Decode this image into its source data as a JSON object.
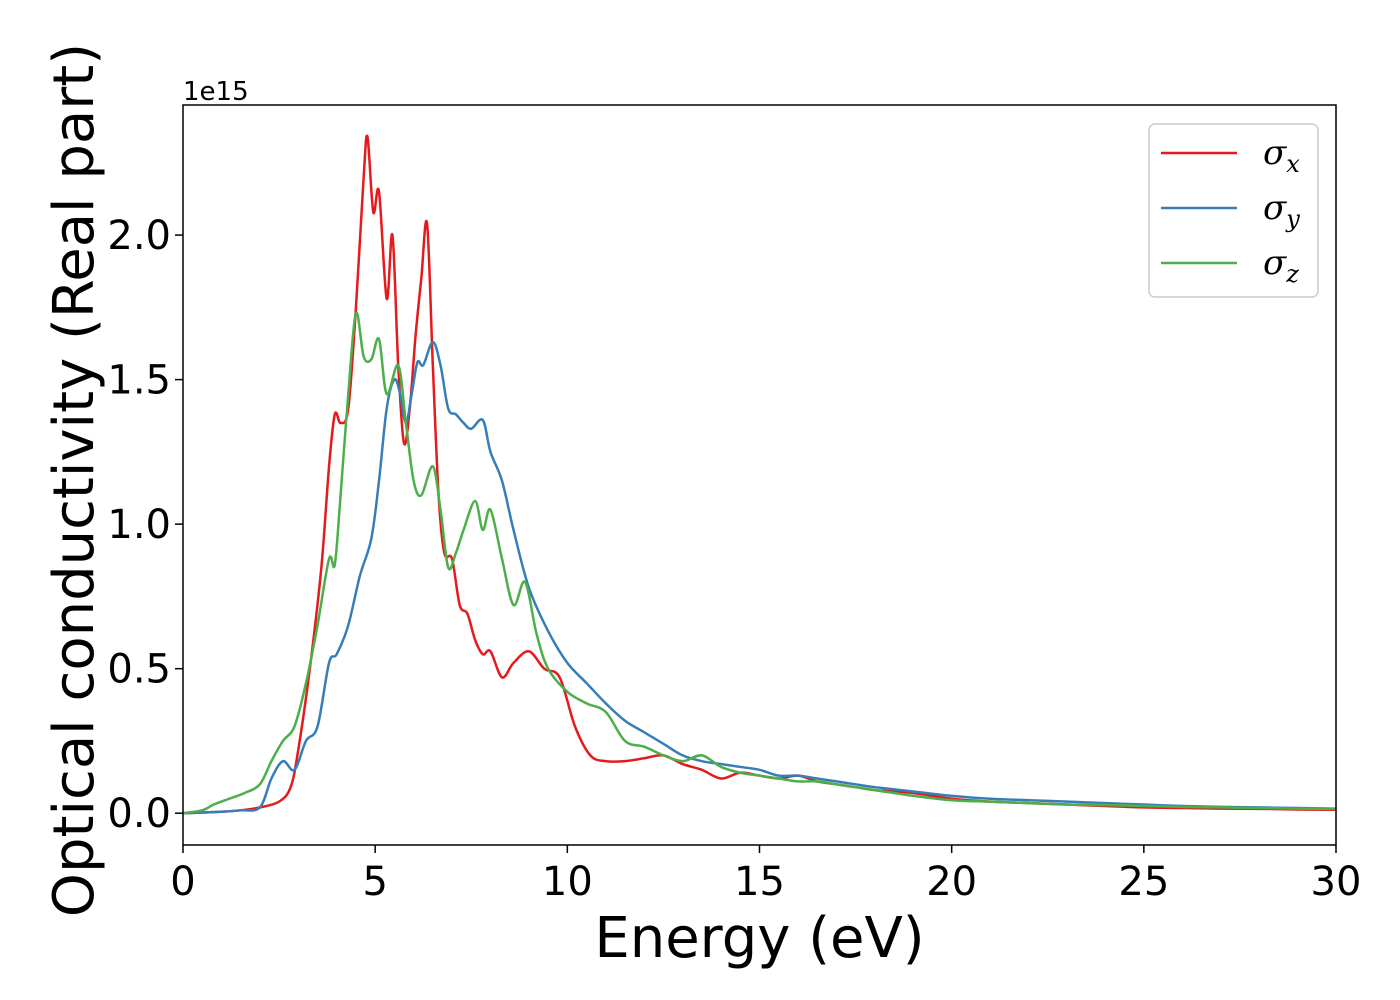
{
  "chart_data": {
    "type": "line",
    "title": "",
    "xlabel": "Energy (eV)",
    "ylabel": "Optical conductivity (Real part)",
    "y_multiplier_label": "1e15",
    "xlim": [
      0,
      30
    ],
    "ylim": [
      -0.11,
      2.45
    ],
    "x_ticks": [
      0,
      5,
      10,
      15,
      20,
      25,
      30
    ],
    "x_tick_labels": [
      "0",
      "5",
      "10",
      "15",
      "20",
      "25",
      "30"
    ],
    "y_ticks": [
      0.0,
      0.5,
      1.0,
      1.5,
      2.0
    ],
    "y_tick_labels": [
      "0.0",
      "0.5",
      "1.0",
      "1.5",
      "2.0"
    ],
    "grid": false,
    "legend_position": "top-right",
    "series": [
      {
        "name_symbol": "σ",
        "name_subscript": "x",
        "color": "#e41a1c",
        "x": [
          0,
          1,
          1.5,
          2,
          2.5,
          2.8,
          3.0,
          3.3,
          3.6,
          3.8,
          3.95,
          4.1,
          4.3,
          4.5,
          4.7,
          4.8,
          4.95,
          5.1,
          5.3,
          5.45,
          5.6,
          5.75,
          5.9,
          6.05,
          6.2,
          6.35,
          6.5,
          6.65,
          6.8,
          7.0,
          7.2,
          7.4,
          7.6,
          7.8,
          8.0,
          8.3,
          8.6,
          9.0,
          9.4,
          9.8,
          10.2,
          10.6,
          11.0,
          11.5,
          12.0,
          12.5,
          13.0,
          13.5,
          14.0,
          14.5,
          15.0,
          15.5,
          16.0,
          16.5,
          17.0,
          17.5,
          18.0,
          19.0,
          20.0,
          21.0,
          22.0,
          23.0,
          24.0,
          25.0,
          26.0,
          27.0,
          28.0,
          29.0,
          30.0
        ],
        "y": [
          0.0,
          0.005,
          0.01,
          0.02,
          0.04,
          0.09,
          0.22,
          0.5,
          0.85,
          1.2,
          1.38,
          1.35,
          1.4,
          1.75,
          2.2,
          2.34,
          2.08,
          2.15,
          1.78,
          2.0,
          1.55,
          1.28,
          1.4,
          1.65,
          1.85,
          2.04,
          1.55,
          1.1,
          0.9,
          0.88,
          0.72,
          0.69,
          0.6,
          0.55,
          0.56,
          0.47,
          0.52,
          0.56,
          0.5,
          0.47,
          0.3,
          0.2,
          0.18,
          0.18,
          0.19,
          0.2,
          0.17,
          0.15,
          0.12,
          0.14,
          0.13,
          0.12,
          0.13,
          0.11,
          0.1,
          0.09,
          0.08,
          0.07,
          0.05,
          0.04,
          0.035,
          0.03,
          0.025,
          0.02,
          0.018,
          0.016,
          0.015,
          0.013,
          0.012
        ]
      },
      {
        "name_symbol": "σ",
        "name_subscript": "y",
        "color": "#377eb8",
        "x": [
          0,
          1,
          1.5,
          2,
          2.3,
          2.6,
          2.9,
          3.2,
          3.5,
          3.8,
          4.0,
          4.3,
          4.6,
          4.9,
          5.1,
          5.3,
          5.5,
          5.65,
          5.8,
          5.95,
          6.1,
          6.25,
          6.5,
          6.7,
          6.9,
          7.1,
          7.3,
          7.5,
          7.8,
          8.0,
          8.3,
          8.6,
          9.0,
          9.5,
          10.0,
          10.5,
          11.0,
          11.5,
          12.0,
          12.5,
          13.0,
          13.5,
          14.0,
          14.5,
          15.0,
          15.5,
          16.0,
          16.5,
          17.0,
          17.5,
          18.0,
          19.0,
          20.0,
          21.0,
          22.0,
          23.0,
          24.0,
          25.0,
          26.0,
          27.0,
          28.0,
          29.0,
          30.0
        ],
        "y": [
          0.0,
          0.005,
          0.01,
          0.02,
          0.12,
          0.18,
          0.15,
          0.25,
          0.3,
          0.52,
          0.55,
          0.65,
          0.82,
          0.95,
          1.15,
          1.4,
          1.5,
          1.45,
          1.35,
          1.45,
          1.56,
          1.55,
          1.63,
          1.55,
          1.4,
          1.38,
          1.35,
          1.33,
          1.36,
          1.25,
          1.15,
          0.98,
          0.78,
          0.63,
          0.52,
          0.45,
          0.38,
          0.32,
          0.28,
          0.24,
          0.2,
          0.18,
          0.17,
          0.16,
          0.15,
          0.13,
          0.13,
          0.12,
          0.11,
          0.1,
          0.09,
          0.075,
          0.06,
          0.05,
          0.045,
          0.04,
          0.035,
          0.03,
          0.025,
          0.022,
          0.02,
          0.018,
          0.016
        ]
      },
      {
        "name_symbol": "σ",
        "name_subscript": "z",
        "color": "#4daf4a",
        "x": [
          0,
          0.5,
          0.8,
          1.2,
          1.6,
          2.0,
          2.3,
          2.6,
          2.9,
          3.2,
          3.5,
          3.8,
          3.95,
          4.1,
          4.3,
          4.5,
          4.7,
          4.9,
          5.1,
          5.3,
          5.6,
          5.8,
          6.0,
          6.2,
          6.5,
          6.7,
          6.9,
          7.1,
          7.3,
          7.6,
          7.8,
          8.0,
          8.3,
          8.6,
          8.9,
          9.2,
          9.5,
          10.0,
          10.5,
          11.0,
          11.5,
          12.0,
          12.5,
          13.0,
          13.5,
          14.0,
          14.5,
          15.0,
          15.5,
          16.0,
          16.5,
          17.0,
          17.5,
          18.0,
          19.0,
          20.0,
          21.0,
          22.0,
          23.0,
          24.0,
          25.0,
          26.0,
          27.0,
          28.0,
          29.0,
          30.0
        ],
        "y": [
          0.0,
          0.01,
          0.03,
          0.05,
          0.07,
          0.1,
          0.18,
          0.25,
          0.3,
          0.45,
          0.65,
          0.88,
          0.86,
          1.1,
          1.45,
          1.73,
          1.58,
          1.57,
          1.64,
          1.45,
          1.55,
          1.35,
          1.15,
          1.1,
          1.2,
          1.05,
          0.85,
          0.9,
          0.98,
          1.08,
          0.98,
          1.05,
          0.88,
          0.72,
          0.8,
          0.62,
          0.5,
          0.42,
          0.38,
          0.35,
          0.25,
          0.23,
          0.2,
          0.18,
          0.2,
          0.16,
          0.14,
          0.13,
          0.12,
          0.11,
          0.11,
          0.1,
          0.09,
          0.08,
          0.06,
          0.045,
          0.04,
          0.035,
          0.03,
          0.028,
          0.025,
          0.022,
          0.02,
          0.018,
          0.016,
          0.015
        ]
      }
    ]
  }
}
